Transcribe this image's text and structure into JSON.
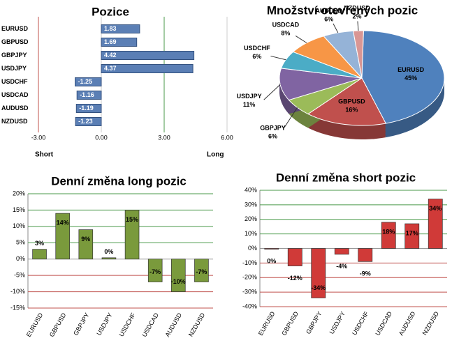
{
  "chart_data": [
    {
      "type": "hbar",
      "title": "Pozice",
      "categories": [
        "EURUSD",
        "GBPUSD",
        "GBPJPY",
        "USDJPY",
        "USDCHF",
        "USDCAD",
        "AUDUSD",
        "NZDUSD"
      ],
      "values": [
        1.83,
        1.69,
        4.42,
        4.37,
        -1.25,
        -1.16,
        -1.19,
        -1.23
      ],
      "color": "#5b7fb5",
      "xlim": [
        -3,
        6
      ],
      "xticks": [
        {
          "value": -3,
          "label": "-3.00"
        },
        {
          "value": 0,
          "label": "0.00"
        },
        {
          "value": 3,
          "label": "3.00"
        },
        {
          "value": 6,
          "label": "6.00"
        }
      ],
      "x_label_left": "Short",
      "x_label_right": "Long"
    },
    {
      "type": "pie",
      "title": "Množství otevřených pozic",
      "categories": [
        "EURUSD",
        "GBPUSD",
        "GBPJPY",
        "USDJPY",
        "USDCHF",
        "USDCAD",
        "AUDUSD",
        "NZDUSD"
      ],
      "values": [
        45,
        16,
        6,
        11,
        6,
        8,
        6,
        2
      ],
      "value_labels": [
        "45%",
        "16%",
        "6%",
        "11%",
        "6%",
        "8%",
        "6%",
        "2%"
      ],
      "colors": [
        "#4f81bd",
        "#c0504d",
        "#9bbb59",
        "#8064a2",
        "#4bacc6",
        "#f79646",
        "#95b3d7",
        "#d99694"
      ]
    },
    {
      "type": "bar",
      "title": "Denní změna long pozic",
      "categories": [
        "EURUSD",
        "GBPUSD",
        "GBPJPY",
        "USDJPY",
        "USDCHF",
        "USDCAD",
        "AUDUSD",
        "NZDUSD"
      ],
      "values": [
        3,
        14,
        9,
        0.4,
        15,
        -7,
        -10,
        -7
      ],
      "value_labels": [
        "3%",
        "14%",
        "9%",
        "0%",
        "15%",
        "-7%",
        "-10%",
        "-7%"
      ],
      "color": "#7a9a3c",
      "ylim": [
        -15,
        20
      ],
      "yticks": [
        {
          "value": -15,
          "label": "-15%"
        },
        {
          "value": -10,
          "label": "-10%"
        },
        {
          "value": -5,
          "label": "-5%"
        },
        {
          "value": 0,
          "label": "0%"
        },
        {
          "value": 5,
          "label": "5%"
        },
        {
          "value": 10,
          "label": "10%"
        },
        {
          "value": 15,
          "label": "15%"
        },
        {
          "value": 20,
          "label": "20%"
        }
      ],
      "grid": true
    },
    {
      "type": "bar",
      "title": "Denní změna short pozic",
      "categories": [
        "EURUSD",
        "GBPUSD",
        "GBPJPY",
        "USDJPY",
        "USDCHF",
        "USDCAD",
        "AUDUSD",
        "NZDUSD"
      ],
      "values": [
        -0.4,
        -12,
        -34,
        -4,
        -9,
        18,
        17,
        34
      ],
      "value_labels": [
        "0%",
        "-12%",
        "-34%",
        "-4%",
        "-9%",
        "18%",
        "17%",
        "34%"
      ],
      "color": "#d03a38",
      "ylim": [
        -40,
        40
      ],
      "yticks": [
        {
          "value": -40,
          "label": "-40%"
        },
        {
          "value": -30,
          "label": "-30%"
        },
        {
          "value": -20,
          "label": "-20%"
        },
        {
          "value": -10,
          "label": "-10%"
        },
        {
          "value": 0,
          "label": "0%"
        },
        {
          "value": 10,
          "label": "10%"
        },
        {
          "value": 20,
          "label": "20%"
        },
        {
          "value": 30,
          "label": "30%"
        },
        {
          "value": 40,
          "label": "40%"
        }
      ],
      "grid": true
    }
  ]
}
